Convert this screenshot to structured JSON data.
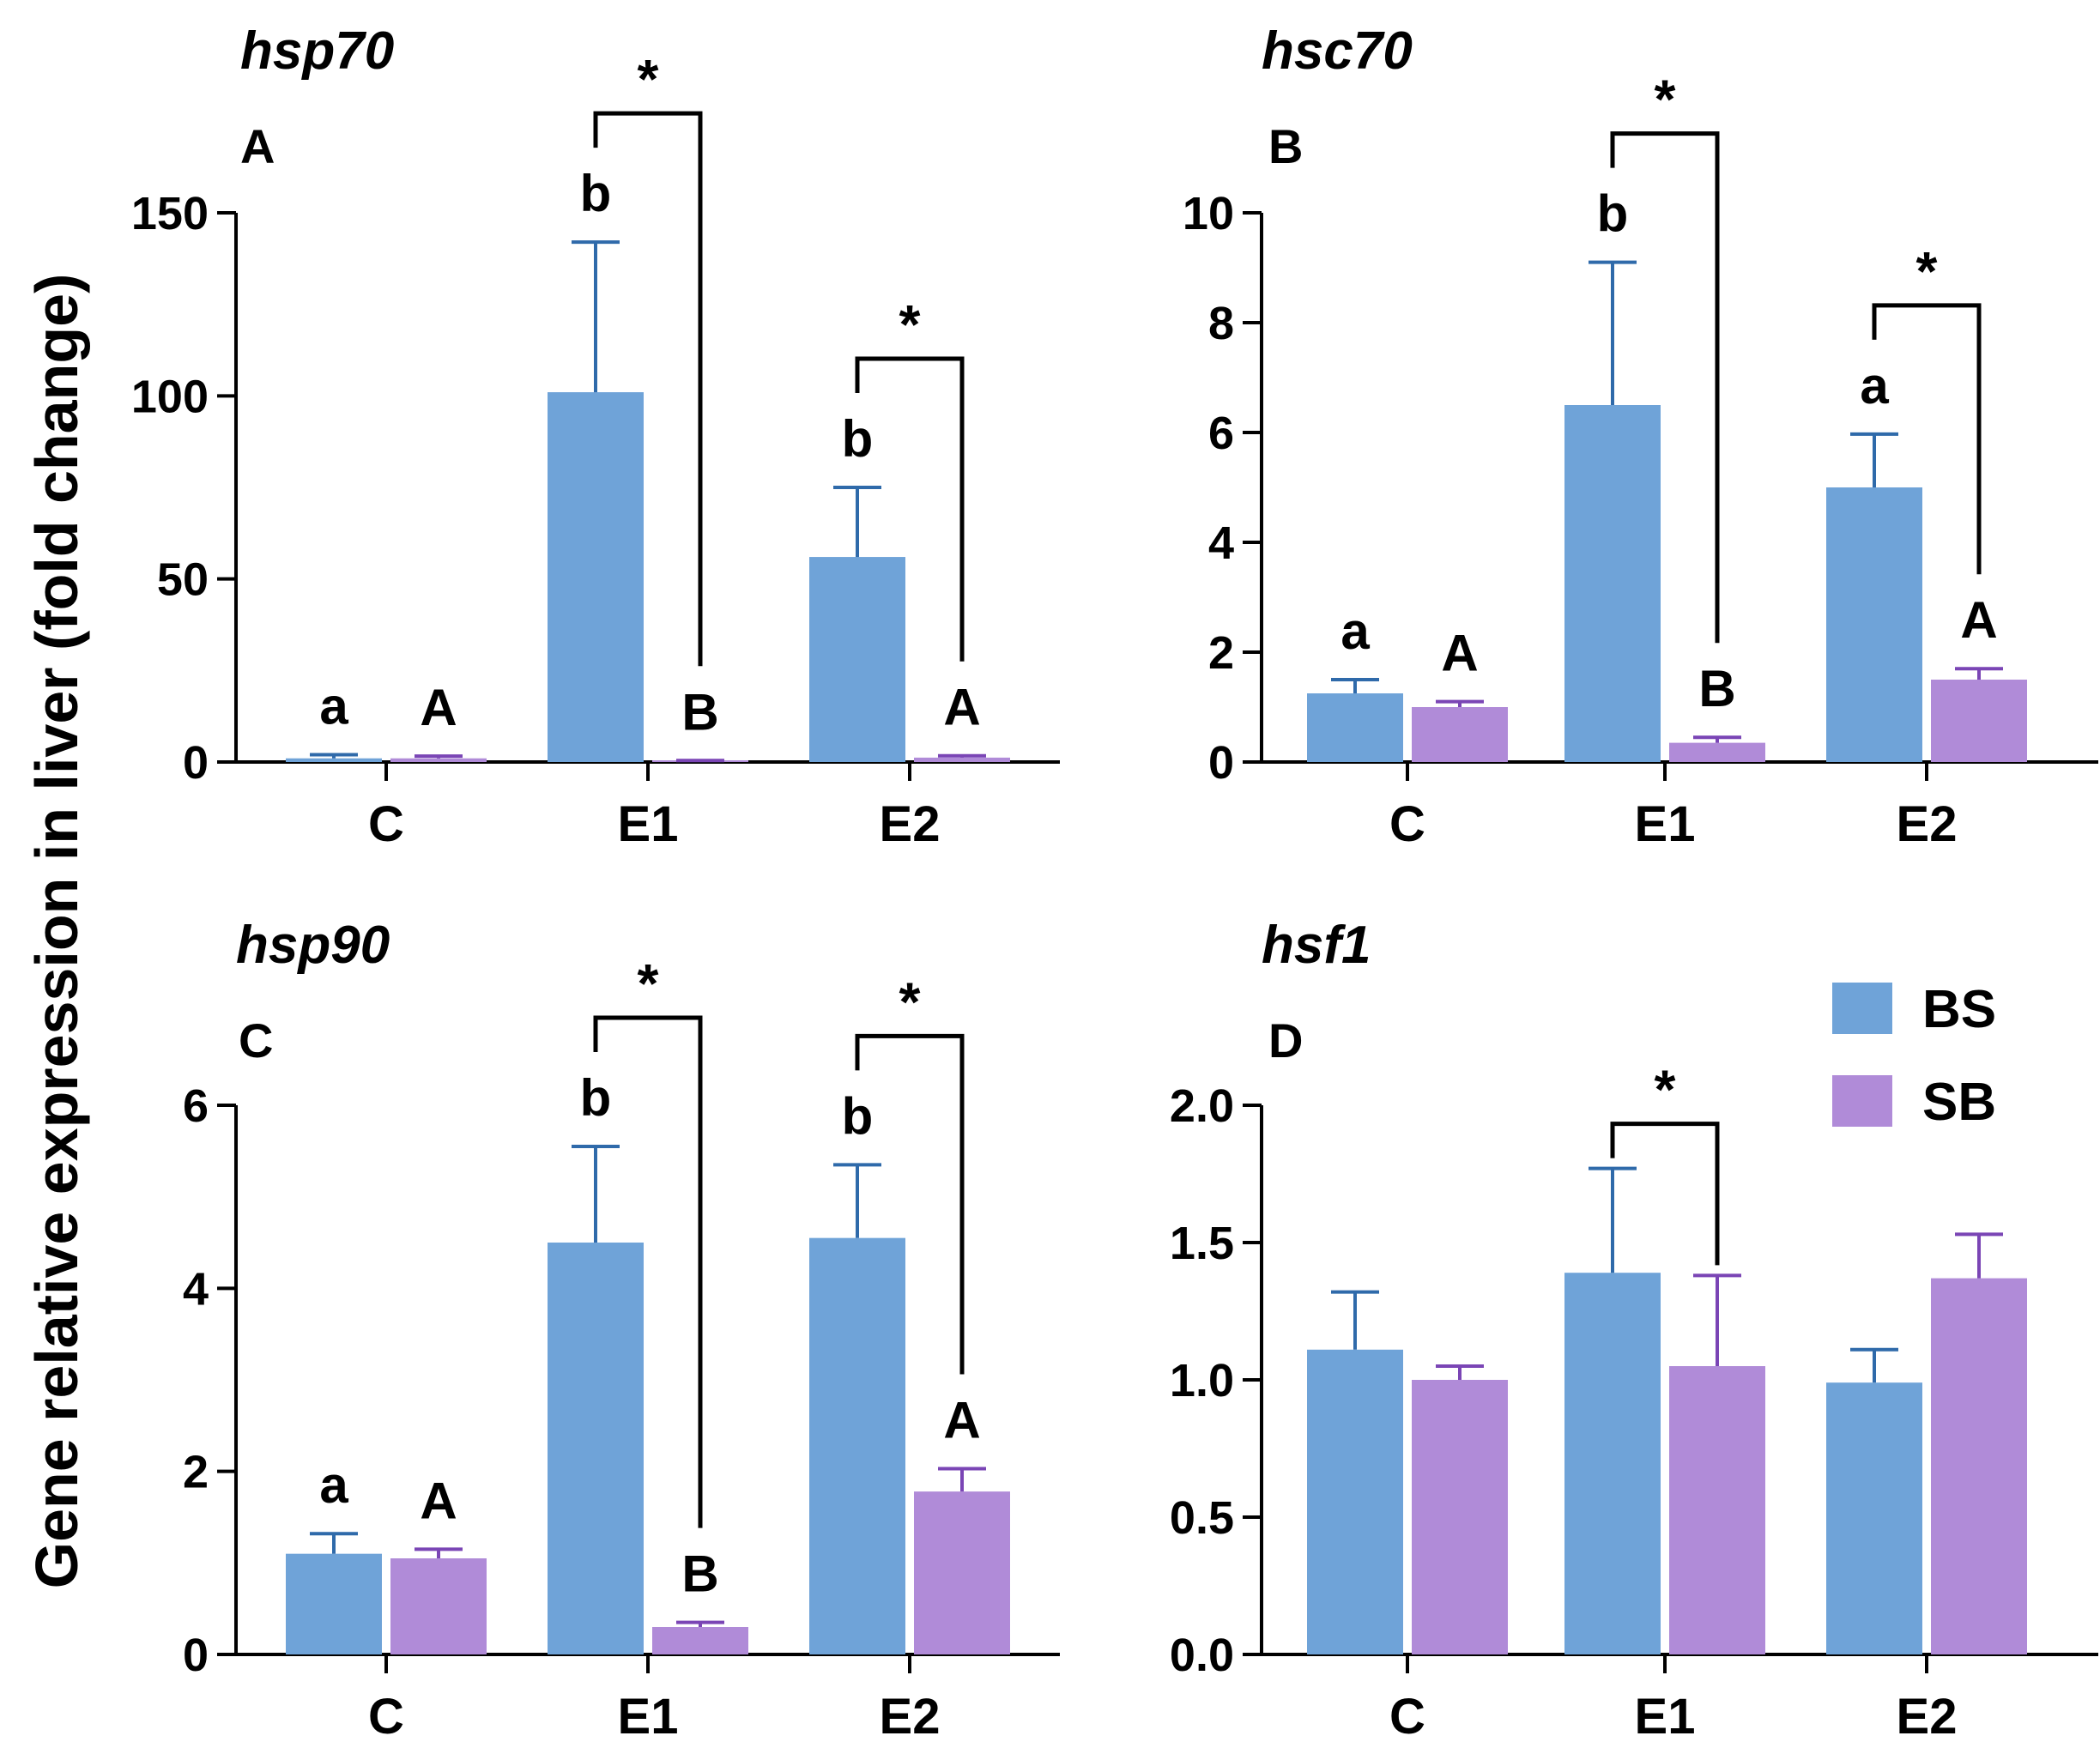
{
  "figure": {
    "ylabel": "Gene relative expression in liver (fold change)",
    "legend": [
      {
        "label": "BS",
        "color": "#6fa3d8"
      },
      {
        "label": "SB",
        "color": "#b08bd8"
      }
    ],
    "colors": {
      "BS": "#6fa3d8",
      "BS_err": "#2f6aaa",
      "SB": "#b08bd8",
      "SB_err": "#7a45b5",
      "axis": "#000000"
    }
  },
  "chart_data": [
    {
      "type": "bar",
      "panel": "A",
      "title": "hsp70",
      "categories": [
        "C",
        "E1",
        "E2"
      ],
      "series": [
        {
          "name": "BS",
          "values": [
            1,
            101,
            56
          ],
          "errors": [
            1,
            41,
            19
          ]
        },
        {
          "name": "SB",
          "values": [
            1,
            0.3,
            1.2
          ],
          "errors": [
            0.6,
            0.1,
            0.5
          ]
        }
      ],
      "ylim": [
        0,
        150
      ],
      "yticks": [
        0,
        50,
        100,
        150
      ],
      "ytick_labels": [
        "0",
        "50",
        "100",
        "150"
      ],
      "sig_letters": {
        "BS": [
          "a",
          "b",
          "b"
        ],
        "SB": [
          "A",
          "B",
          "A"
        ]
      },
      "comparisons": [
        {
          "category": "E1",
          "label": "*"
        },
        {
          "category": "E2",
          "label": "*"
        }
      ]
    },
    {
      "type": "bar",
      "panel": "B",
      "title": "hsc70",
      "categories": [
        "C",
        "E1",
        "E2"
      ],
      "series": [
        {
          "name": "BS",
          "values": [
            1.25,
            6.5,
            5.0
          ],
          "errors": [
            0.25,
            2.6,
            0.97
          ]
        },
        {
          "name": "SB",
          "values": [
            1.0,
            0.35,
            1.5
          ],
          "errors": [
            0.1,
            0.1,
            0.2
          ]
        }
      ],
      "ylim": [
        0,
        10
      ],
      "yticks": [
        0,
        2,
        4,
        6,
        8,
        10
      ],
      "ytick_labels": [
        "0",
        "2",
        "4",
        "6",
        "8",
        "10"
      ],
      "sig_letters": {
        "BS": [
          "a",
          "b",
          "a"
        ],
        "SB": [
          "A",
          "B",
          "A"
        ]
      },
      "comparisons": [
        {
          "category": "E1",
          "label": "*"
        },
        {
          "category": "E2",
          "label": "*"
        }
      ]
    },
    {
      "type": "bar",
      "panel": "C",
      "title": "hsp90",
      "categories": [
        "C",
        "E1",
        "E2"
      ],
      "series": [
        {
          "name": "BS",
          "values": [
            1.1,
            4.5,
            4.55
          ],
          "errors": [
            0.22,
            1.05,
            0.8
          ]
        },
        {
          "name": "SB",
          "values": [
            1.05,
            0.3,
            1.78
          ],
          "errors": [
            0.1,
            0.05,
            0.25
          ]
        }
      ],
      "ylim": [
        0,
        6
      ],
      "yticks": [
        0,
        2,
        4,
        6
      ],
      "ytick_labels": [
        "0",
        "2",
        "4",
        "6"
      ],
      "sig_letters": {
        "BS": [
          "a",
          "b",
          "b"
        ],
        "SB": [
          "A",
          "B",
          "A"
        ]
      },
      "comparisons": [
        {
          "category": "E1",
          "label": "*"
        },
        {
          "category": "E2",
          "label": "*"
        }
      ]
    },
    {
      "type": "bar",
      "panel": "D",
      "title": "hsf1",
      "categories": [
        "C",
        "E1",
        "E2"
      ],
      "series": [
        {
          "name": "BS",
          "values": [
            1.11,
            1.39,
            0.99
          ],
          "errors": [
            0.21,
            0.38,
            0.12
          ]
        },
        {
          "name": "SB",
          "values": [
            1.0,
            1.05,
            1.37
          ],
          "errors": [
            0.05,
            0.33,
            0.16
          ]
        }
      ],
      "ylim": [
        0,
        2.0
      ],
      "yticks": [
        0,
        0.5,
        1.0,
        1.5,
        2.0
      ],
      "ytick_labels": [
        "0.0",
        "0.5",
        "1.0",
        "1.5",
        "2.0"
      ],
      "sig_letters": {
        "BS": [
          "",
          "",
          ""
        ],
        "SB": [
          "",
          "",
          ""
        ]
      },
      "comparisons": [
        {
          "category": "E1",
          "label": "*"
        }
      ]
    }
  ]
}
